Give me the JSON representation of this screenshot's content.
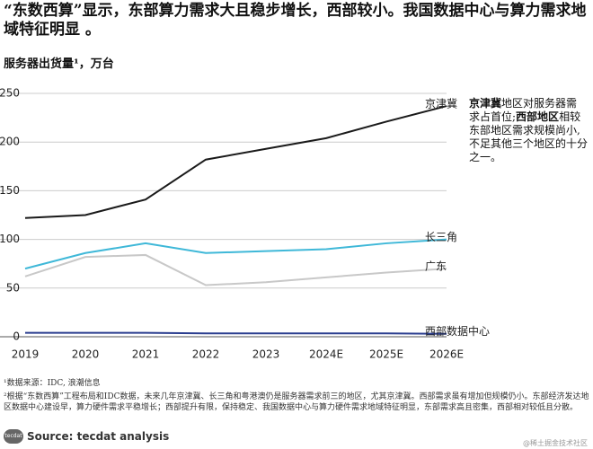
{
  "chart_data": {
    "type": "line",
    "title": "“东数西算”显示，东部算力需求大且稳步增长，西部较小。我国数据中心与算力需求地域特征明显 。",
    "subtitle": "服务器出货量¹，万台",
    "categories": [
      "2019",
      "2020",
      "2021",
      "2022",
      "2023",
      "2024E",
      "2025E",
      "2026E"
    ],
    "series": [
      {
        "name": "京津冀",
        "color": "#1a1a1a",
        "values": [
          122,
          125,
          141,
          182,
          193,
          204,
          221,
          237
        ]
      },
      {
        "name": "长三角",
        "color": "#3fb8d8",
        "values": [
          70,
          86,
          96,
          86,
          88,
          90,
          96,
          100
        ]
      },
      {
        "name": "广东",
        "color": "#c8c8c8",
        "values": [
          62,
          82,
          84,
          53,
          56,
          61,
          66,
          70
        ]
      },
      {
        "name": "西部数据中心",
        "color": "#2a3d8f",
        "values": [
          4,
          4,
          4,
          3.5,
          3.5,
          3.5,
          3.5,
          3
        ]
      }
    ],
    "ylim": [
      0,
      250
    ],
    "yticks": [
      0,
      50,
      100,
      150,
      200,
      250
    ],
    "grid": true,
    "annotation": [
      {
        "text": "京津冀",
        "bold": true
      },
      {
        "text": "地区对服务器需求占首位;",
        "bold": false
      },
      {
        "text": "西部地区",
        "bold": true
      },
      {
        "text": "相较东部地区需求规模尚小,不足其他三个地区的十分之一。",
        "bold": false
      }
    ],
    "footnotes": [
      "¹数据来源：IDC, 浪潮信息",
      "²根据“东数西算”工程布局和IDC数据，未来几年京津冀、长三角和粤港澳仍是服务器需求前三的地区，尤其京津冀。西部需求虽有增加但规模仍小。东部经济发达地区数据中心建设早，算力硬件需求平稳增长；西部提升有限，保持稳定、我国数据中心与算力硬件需求地域特征明显，东部需求高且密集，西部相对较低且分散。"
    ],
    "source": "Source: tecdat analysis",
    "logo": "tecdat",
    "watermark": "@稀土掘金技术社区"
  }
}
